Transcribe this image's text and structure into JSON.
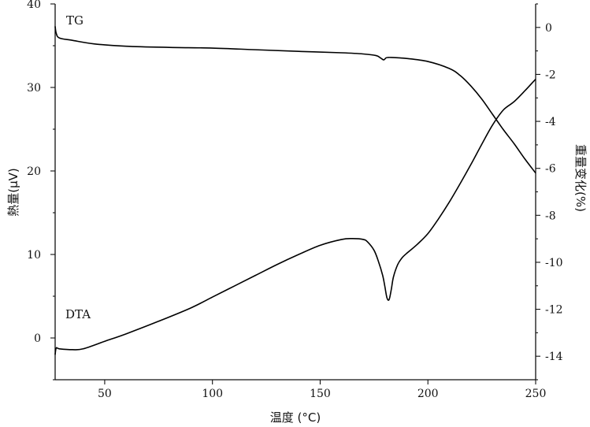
{
  "chart_data": {
    "type": "line",
    "xlabel": "温度 (°C)",
    "ylabel_left": "熱量(μV)",
    "ylabel_right": "重量变化(%)",
    "xlim": [
      27,
      250
    ],
    "ylim_left": [
      -5,
      40
    ],
    "ylim_right": [
      -15,
      1
    ],
    "xticks": [
      50,
      100,
      150,
      200,
      250
    ],
    "yticks_left": [
      0,
      10,
      20,
      30,
      40
    ],
    "yticks_right": [
      0,
      -2,
      -4,
      -6,
      -8,
      -10,
      -12,
      -14
    ],
    "grid": false,
    "series": [
      {
        "name": "TG",
        "axis": "right",
        "x": [
          27,
          27.5,
          29,
          35,
          45,
          60,
          80,
          100,
          120,
          140,
          160,
          170,
          176,
          178,
          179.5,
          180.5,
          181.5,
          183,
          190,
          200,
          210,
          215,
          220,
          225,
          230,
          235,
          240,
          245,
          250
        ],
        "y": [
          0.05,
          -0.25,
          -0.45,
          -0.55,
          -0.7,
          -0.8,
          -0.85,
          -0.88,
          -0.95,
          -1.02,
          -1.08,
          -1.13,
          -1.2,
          -1.3,
          -1.38,
          -1.3,
          -1.28,
          -1.28,
          -1.32,
          -1.45,
          -1.75,
          -2.05,
          -2.5,
          -3.05,
          -3.7,
          -4.35,
          -4.95,
          -5.6,
          -6.2
        ]
      },
      {
        "name": "DTA",
        "axis": "left",
        "x": [
          27,
          27.5,
          29,
          35,
          40,
          50,
          60,
          75,
          90,
          100,
          110,
          120,
          130,
          140,
          150,
          160,
          165,
          170,
          172,
          175,
          177,
          179,
          180,
          181,
          182,
          183,
          184,
          186,
          188,
          190,
          195,
          200,
          205,
          210,
          215,
          220,
          225,
          230,
          235,
          240,
          245,
          250
        ],
        "y": [
          -2,
          -1.2,
          -1.3,
          -1.4,
          -1.3,
          -0.4,
          0.5,
          2,
          3.6,
          4.9,
          6.2,
          7.5,
          8.8,
          10,
          11.1,
          11.8,
          11.9,
          11.8,
          11.5,
          10.5,
          9.2,
          7.5,
          6.2,
          4.8,
          4.6,
          5.8,
          7.3,
          8.8,
          9.6,
          10.1,
          11.2,
          12.5,
          14.3,
          16.3,
          18.5,
          20.8,
          23.2,
          25.5,
          27.3,
          28.3,
          29.6,
          31
        ]
      }
    ],
    "annotations": [
      "TG",
      "DTA"
    ]
  }
}
